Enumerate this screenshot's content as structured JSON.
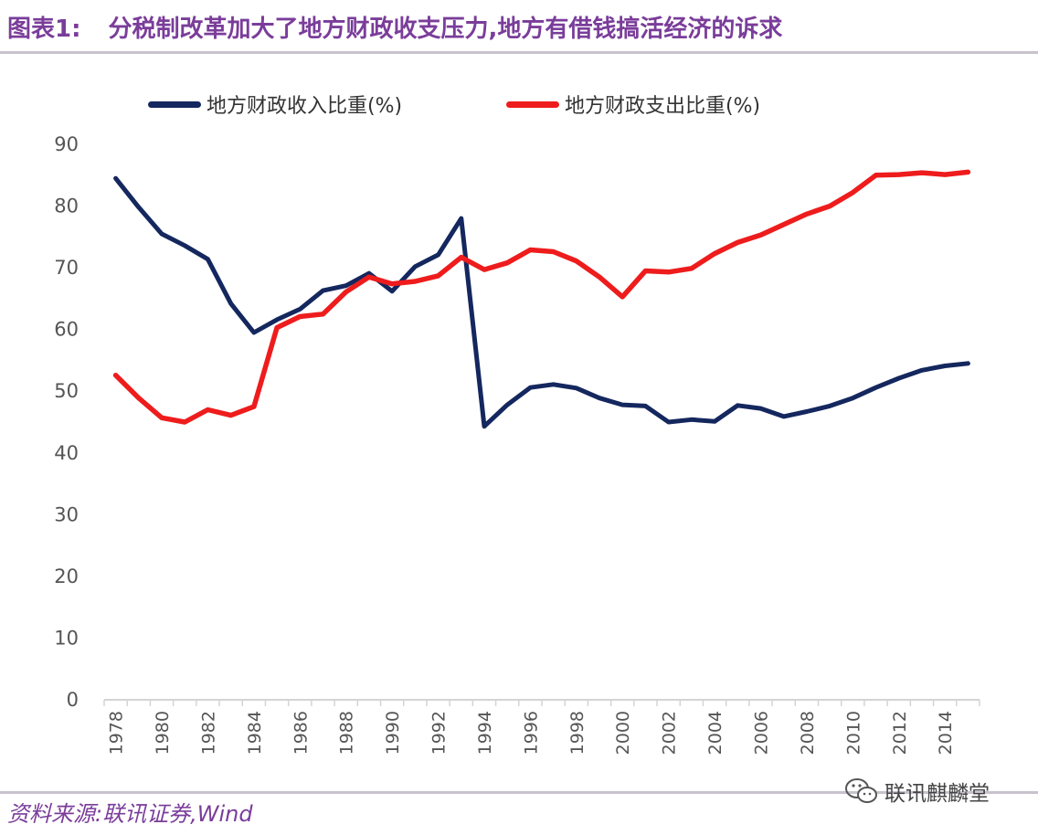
{
  "figure": {
    "title_label": "图表1:",
    "title_text": "分税制改革加大了地方财政收支压力,地方有借钱搞活经济的诉求",
    "source": "资料来源:联讯证券,Wind",
    "watermark": "联讯麒麟堂",
    "watermark_icon": "wechat-icon"
  },
  "colors": {
    "title": "#7a3d9a",
    "revenue": "#14275e",
    "expenditure": "#ee1c1c",
    "axis": "#d4d4d4",
    "tick_text": "#555555"
  },
  "chart_data": {
    "type": "line",
    "title": "",
    "xlabel": "",
    "ylabel": "",
    "ylim": [
      0,
      90
    ],
    "yticks": [
      0,
      10,
      20,
      30,
      40,
      50,
      60,
      70,
      80,
      90
    ],
    "grid": false,
    "legend_position": "top",
    "x": [
      1978,
      1979,
      1980,
      1981,
      1982,
      1983,
      1984,
      1985,
      1986,
      1987,
      1988,
      1989,
      1990,
      1991,
      1992,
      1993,
      1994,
      1995,
      1996,
      1997,
      1998,
      1999,
      2000,
      2001,
      2002,
      2003,
      2004,
      2005,
      2006,
      2007,
      2008,
      2009,
      2010,
      2011,
      2012,
      2013,
      2014,
      2015
    ],
    "xtick_labels": [
      "1978",
      "1980",
      "1982",
      "1984",
      "1986",
      "1988",
      "1990",
      "1992",
      "1994",
      "1996",
      "1998",
      "2000",
      "2002",
      "2004",
      "2006",
      "2008",
      "2010",
      "2012",
      "2014"
    ],
    "series": [
      {
        "name": "地方财政收入比重(%)",
        "color": "#14275e",
        "values": [
          84.5,
          79.8,
          75.5,
          73.6,
          71.4,
          64.2,
          59.5,
          61.6,
          63.3,
          66.3,
          67.1,
          69.1,
          66.2,
          70.2,
          72.1,
          78.0,
          44.3,
          47.8,
          50.6,
          51.1,
          50.5,
          48.9,
          47.8,
          47.6,
          45.0,
          45.4,
          45.1,
          47.7,
          47.2,
          45.9,
          46.7,
          47.6,
          48.9,
          50.6,
          52.1,
          53.4,
          54.1,
          54.5
        ]
      },
      {
        "name": "地方财政支出比重(%)",
        "color": "#ee1c1c",
        "values": [
          52.6,
          48.9,
          45.7,
          45.0,
          47.0,
          46.1,
          47.5,
          60.3,
          62.1,
          62.5,
          66.1,
          68.5,
          67.4,
          67.8,
          68.7,
          71.7,
          69.7,
          70.8,
          72.9,
          72.6,
          71.1,
          68.5,
          65.3,
          69.5,
          69.3,
          69.9,
          72.3,
          74.1,
          75.3,
          77.0,
          78.7,
          80.0,
          82.2,
          85.0,
          85.1,
          85.4,
          85.1,
          85.5
        ]
      }
    ]
  }
}
